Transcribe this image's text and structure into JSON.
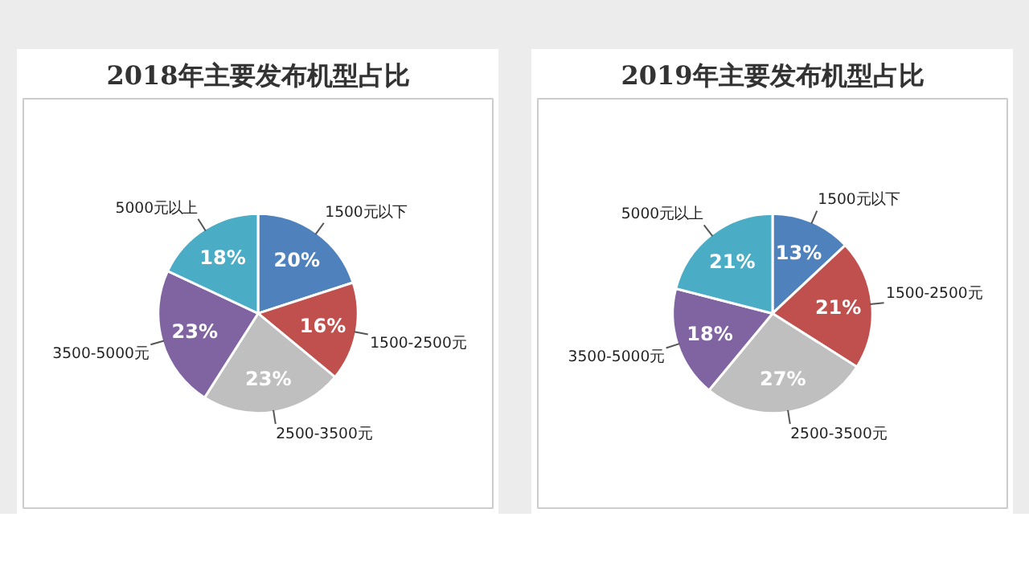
{
  "chart_data": [
    {
      "type": "pie",
      "title": "2018年主要发布机型占比",
      "categories": [
        "1500元以下",
        "1500-2500元",
        "2500-3500元",
        "3500-5000元",
        "5000元以上"
      ],
      "values": [
        20,
        16,
        23,
        23,
        18
      ],
      "value_labels": [
        "20%",
        "16%",
        "23%",
        "23%",
        "18%"
      ],
      "colors": [
        "#4f81bd",
        "#c0504d",
        "#bfbfbf",
        "#8064a2",
        "#4bacc6"
      ]
    },
    {
      "type": "pie",
      "title": "2019年主要发布机型占比",
      "categories": [
        "1500元以下",
        "1500-2500元",
        "2500-3500元",
        "3500-5000元",
        "5000元以上"
      ],
      "values": [
        13,
        21,
        27,
        18,
        21
      ],
      "value_labels": [
        "13%",
        "21%",
        "27%",
        "18%",
        "21%"
      ],
      "colors": [
        "#4f81bd",
        "#c0504d",
        "#bfbfbf",
        "#8064a2",
        "#4bacc6"
      ]
    }
  ]
}
